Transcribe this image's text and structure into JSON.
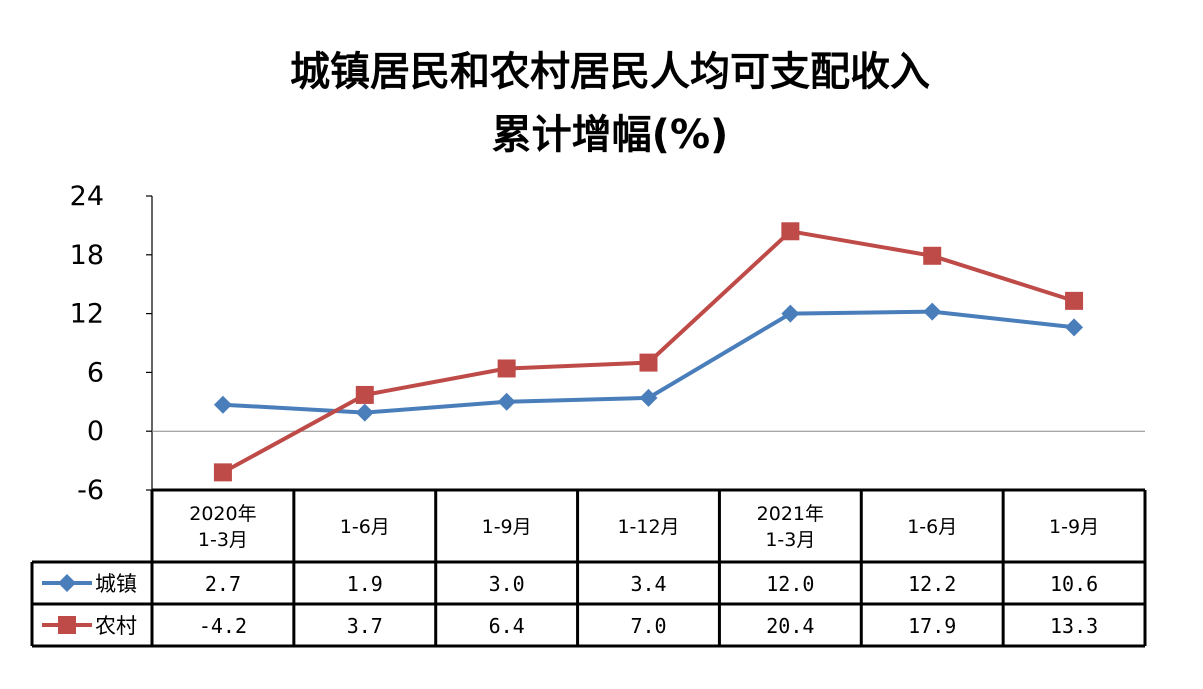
{
  "chart_data": {
    "type": "line",
    "title_lines": [
      "城镇居民和农村居民人均可支配收入",
      "累计增幅(%)"
    ],
    "categories": [
      [
        "2020年",
        "1-3月"
      ],
      [
        "1-6月"
      ],
      [
        "1-9月"
      ],
      [
        "1-12月"
      ],
      [
        "2021年",
        "1-3月"
      ],
      [
        "1-6月"
      ],
      [
        "1-9月"
      ]
    ],
    "yticks": [
      "24",
      "18",
      "12",
      "6",
      "0",
      "-6"
    ],
    "ylim": [
      -6,
      24
    ],
    "grid": false,
    "legend_placement": "data-table",
    "series": [
      {
        "name": "城镇",
        "color": "#4a7ebb",
        "marker": "diamond",
        "values": [
          2.7,
          1.9,
          3.0,
          3.4,
          12.0,
          12.2,
          10.6
        ],
        "labels": [
          "2.7",
          "1.9",
          "3.0",
          "3.4",
          "12.0",
          "12.2",
          "10.6"
        ]
      },
      {
        "name": "农村",
        "color": "#be4b48",
        "marker": "square",
        "values": [
          -4.2,
          3.7,
          6.4,
          7.0,
          20.4,
          17.9,
          13.3
        ],
        "labels": [
          "-4.2",
          "3.7",
          "6.4",
          "7.0",
          "20.4",
          "17.9",
          "13.3"
        ]
      }
    ]
  }
}
